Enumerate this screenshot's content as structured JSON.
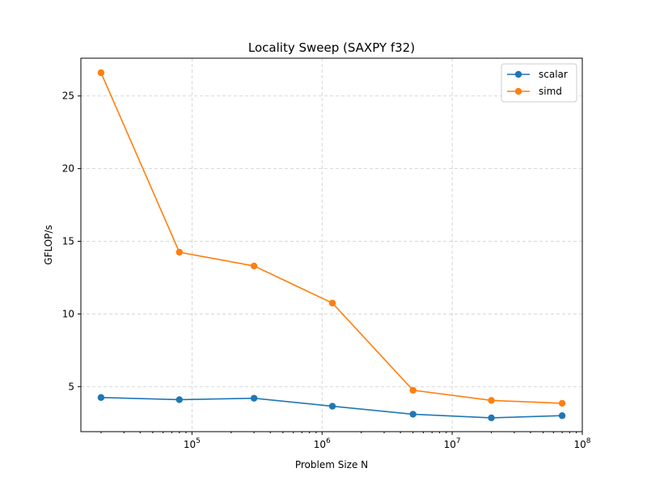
{
  "chart_data": {
    "type": "line",
    "title": "Locality Sweep (SAXPY f32)",
    "xlabel": "Problem Size N",
    "ylabel": "GFLOP/s",
    "xscale": "log",
    "xlim": [
      14000,
      100000000
    ],
    "ylim": [
      1.9,
      27.6
    ],
    "x": [
      20000,
      80000,
      300000,
      1200000,
      5000000,
      20000000,
      70000000
    ],
    "xticks": [
      {
        "value": 100000,
        "base": "10",
        "exp": "5"
      },
      {
        "value": 1000000,
        "base": "10",
        "exp": "6"
      },
      {
        "value": 10000000,
        "base": "10",
        "exp": "7"
      },
      {
        "value": 100000000,
        "base": "10",
        "exp": "8"
      }
    ],
    "yticks": [
      {
        "value": 5,
        "label": "5"
      },
      {
        "value": 10,
        "label": "10"
      },
      {
        "value": 15,
        "label": "15"
      },
      {
        "value": 20,
        "label": "20"
      },
      {
        "value": 25,
        "label": "25"
      }
    ],
    "grid": true,
    "legend_position": "top-right",
    "series": [
      {
        "name": "scalar",
        "color": "#1f77b4",
        "values": [
          4.25,
          4.1,
          4.2,
          3.65,
          3.1,
          2.85,
          3.0
        ]
      },
      {
        "name": "simd",
        "color": "#ff7f0e",
        "values": [
          26.6,
          14.25,
          13.3,
          10.75,
          4.75,
          4.05,
          3.85
        ]
      }
    ]
  }
}
